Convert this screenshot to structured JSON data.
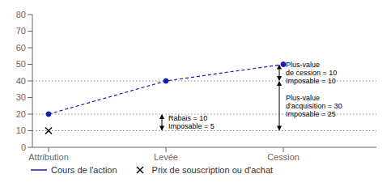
{
  "chart_data": {
    "type": "line",
    "categories": [
      "Attribution",
      "Levée",
      "Cession"
    ],
    "series": [
      {
        "name": "Cours de l'action",
        "color": "#1a1ab4",
        "values": [
          20,
          40,
          50
        ],
        "line_style": "dashed",
        "marker": "circle"
      },
      {
        "name": "Prix de souscription ou d'achat",
        "color": "#000000",
        "values": [
          10,
          null,
          null
        ],
        "type": "scatter",
        "marker": "x"
      }
    ],
    "ylim": [
      0,
      80
    ],
    "yticks": [
      0,
      10,
      20,
      30,
      40,
      50,
      60,
      70,
      80
    ],
    "grid": false,
    "legend": "bottom",
    "reference_lines": {
      "color": "#888888",
      "line_style": "dotted",
      "values": [
        10,
        20,
        40
      ]
    },
    "annotations": [
      {
        "text": "Rabais = 10\nImposable = 5",
        "x": "Levée",
        "from": 10,
        "to": 20
      },
      {
        "text": "Plus-value\nde cession = 10\nImposable = 10",
        "x": "Cession",
        "from": 40,
        "to": 50
      },
      {
        "text": "Plus-value\nd'acquisition = 30\nImposable = 25",
        "x": "Cession",
        "from": 10,
        "to": 40
      }
    ]
  }
}
